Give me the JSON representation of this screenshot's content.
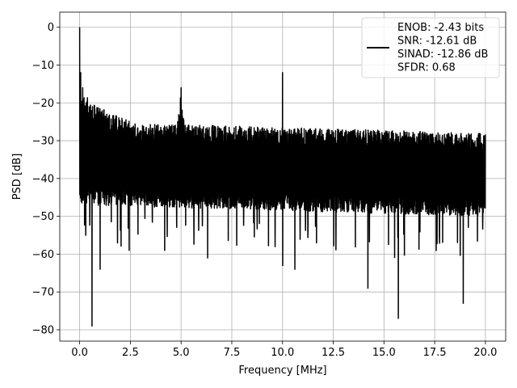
{
  "chart_data": {
    "type": "line",
    "xlabel": "Frequency [MHz]",
    "ylabel": "PSD [dB]",
    "xlim": [
      -0.98,
      21.0
    ],
    "ylim": [
      -83.0,
      4.0
    ],
    "xticks": [
      0.0,
      2.5,
      5.0,
      7.5,
      10.0,
      12.5,
      15.0,
      17.5,
      20.0
    ],
    "xtick_labels": [
      "0.0",
      "2.5",
      "5.0",
      "7.5",
      "10.0",
      "12.5",
      "15.0",
      "17.5",
      "20.0"
    ],
    "yticks": [
      0,
      -10,
      -20,
      -30,
      -40,
      -50,
      -60,
      -70,
      -80
    ],
    "ytick_labels": [
      "0",
      "−10",
      "−20",
      "−30",
      "−40",
      "−50",
      "−60",
      "−70",
      "−80"
    ],
    "grid": true,
    "legend_position": "top-right",
    "line_color": "#000000",
    "series": [
      {
        "legend_lines": [
          "ENOB: -2.43 bits",
          "SNR: -12.61 dB",
          "SINAD: -12.86 dB",
          "SFDR: 0.68"
        ],
        "description": "noisy PSD, mostly between -25 and -50 dB",
        "peaks": [
          {
            "x": 0.0,
            "y": 0
          },
          {
            "x": 0.05,
            "y": -12
          },
          {
            "x": 5.0,
            "y": -16
          },
          {
            "x": 10.0,
            "y": -12
          }
        ],
        "dips": [
          {
            "x": 0.6,
            "y": -79
          },
          {
            "x": 1.0,
            "y": -64
          },
          {
            "x": 6.3,
            "y": -61
          },
          {
            "x": 10.0,
            "y": -63
          },
          {
            "x": 10.6,
            "y": -64
          },
          {
            "x": 14.2,
            "y": -69
          },
          {
            "x": 15.7,
            "y": -77
          },
          {
            "x": 18.9,
            "y": -73
          }
        ]
      }
    ]
  }
}
